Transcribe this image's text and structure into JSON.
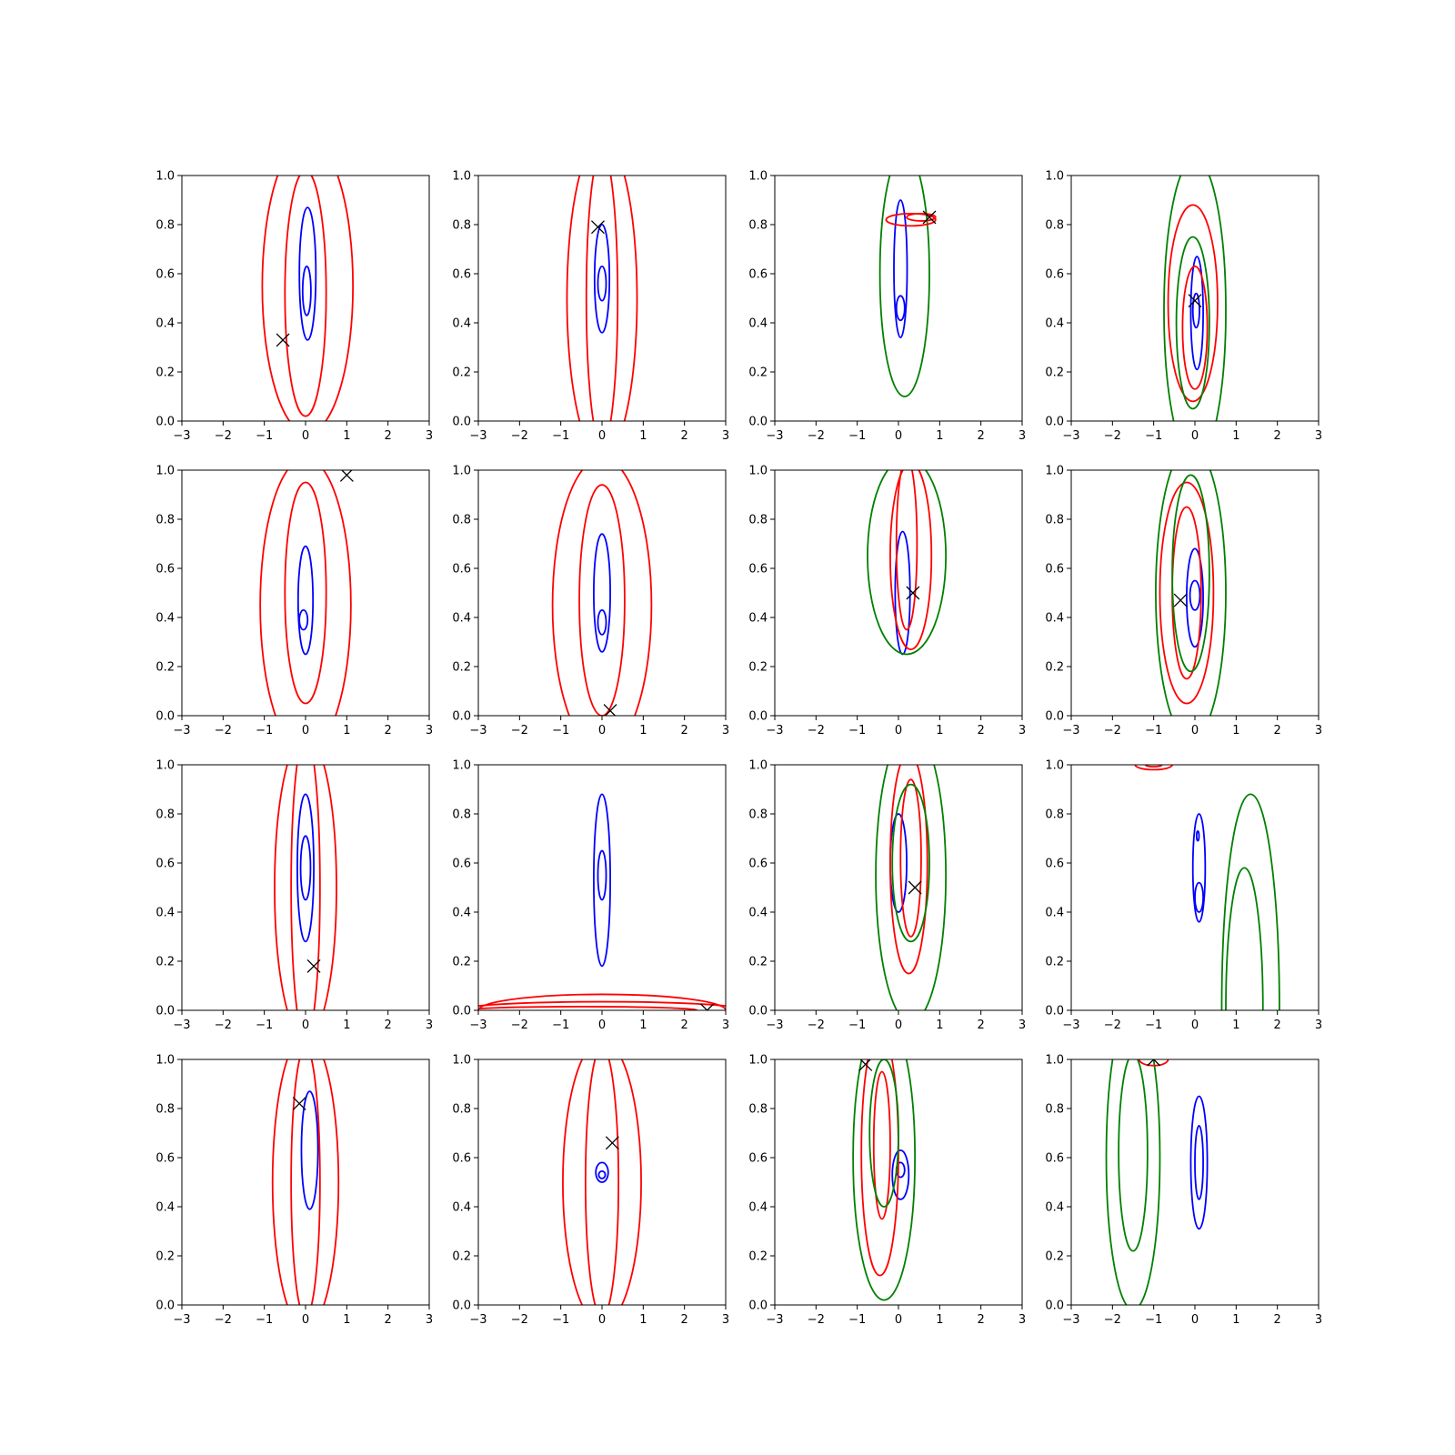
{
  "chart_data": {
    "type": "contour",
    "layout": {
      "rows": 4,
      "cols": 4
    },
    "colors": {
      "blue": "#0000ff",
      "red": "#ff0000",
      "green": "#008000",
      "marker": "#000000",
      "axes": "#000000"
    },
    "xlim": [
      -3,
      3
    ],
    "ylim": [
      0,
      1
    ],
    "xticks": [
      -3,
      -2,
      -1,
      0,
      1,
      2,
      3
    ],
    "yticks": [
      0.0,
      0.2,
      0.4,
      0.6,
      0.8,
      1.0
    ],
    "xtick_labels": [
      "−3",
      "−2",
      "−1",
      "0",
      "1",
      "2",
      "3"
    ],
    "ytick_labels": [
      "0.0",
      "0.2",
      "0.4",
      "0.6",
      "0.8",
      "1.0"
    ],
    "marker_symbol": "x",
    "panels": [
      {
        "marker": [
          -0.55,
          0.33
        ],
        "contours": [
          {
            "color": "blue",
            "cx": 0.05,
            "cy": 0.6,
            "rx": 0.2,
            "ry": 0.27
          },
          {
            "color": "blue",
            "cx": 0.03,
            "cy": 0.53,
            "rx": 0.1,
            "ry": 0.1
          },
          {
            "color": "red",
            "cx": 0.05,
            "cy": 0.55,
            "rx": 1.1,
            "ry": 0.6
          },
          {
            "color": "red",
            "cx": 0.0,
            "cy": 0.52,
            "rx": 0.5,
            "ry": 0.5
          }
        ]
      },
      {
        "marker": [
          -0.1,
          0.79
        ],
        "contours": [
          {
            "color": "blue",
            "cx": 0.0,
            "cy": 0.58,
            "rx": 0.18,
            "ry": 0.22
          },
          {
            "color": "blue",
            "cx": 0.0,
            "cy": 0.56,
            "rx": 0.1,
            "ry": 0.07
          },
          {
            "color": "red",
            "cx": 0.0,
            "cy": 0.5,
            "rx": 0.85,
            "ry": 0.65
          },
          {
            "color": "red",
            "cx": 0.0,
            "cy": 0.5,
            "rx": 0.38,
            "ry": 0.6
          }
        ]
      },
      {
        "marker": [
          0.75,
          0.83
        ],
        "contours": [
          {
            "color": "blue",
            "cx": 0.05,
            "cy": 0.62,
            "rx": 0.16,
            "ry": 0.28
          },
          {
            "color": "blue",
            "cx": 0.05,
            "cy": 0.46,
            "rx": 0.1,
            "ry": 0.05
          },
          {
            "color": "green",
            "cx": 0.15,
            "cy": 0.6,
            "rx": 0.6,
            "ry": 0.5
          },
          {
            "color": "red",
            "cx": 0.3,
            "cy": 0.82,
            "rx": 0.6,
            "ry": 0.025
          },
          {
            "color": "red",
            "cx": 0.55,
            "cy": 0.83,
            "rx": 0.35,
            "ry": 0.015
          }
        ]
      },
      {
        "marker": [
          0.0,
          0.49
        ],
        "contours": [
          {
            "color": "blue",
            "cx": 0.05,
            "cy": 0.44,
            "rx": 0.15,
            "ry": 0.23
          },
          {
            "color": "blue",
            "cx": 0.03,
            "cy": 0.45,
            "rx": 0.08,
            "ry": 0.07
          },
          {
            "color": "red",
            "cx": -0.05,
            "cy": 0.48,
            "rx": 0.6,
            "ry": 0.4
          },
          {
            "color": "red",
            "cx": 0.0,
            "cy": 0.38,
            "rx": 0.3,
            "ry": 0.25
          },
          {
            "color": "green",
            "cx": 0.0,
            "cy": 0.45,
            "rx": 0.75,
            "ry": 0.62
          },
          {
            "color": "green",
            "cx": -0.05,
            "cy": 0.4,
            "rx": 0.4,
            "ry": 0.35
          }
        ]
      },
      {
        "marker": [
          1.0,
          0.98
        ],
        "contours": [
          {
            "color": "blue",
            "cx": 0.0,
            "cy": 0.47,
            "rx": 0.18,
            "ry": 0.22
          },
          {
            "color": "blue",
            "cx": -0.05,
            "cy": 0.39,
            "rx": 0.1,
            "ry": 0.04
          },
          {
            "color": "red",
            "cx": 0.0,
            "cy": 0.45,
            "rx": 1.1,
            "ry": 0.6
          },
          {
            "color": "red",
            "cx": 0.0,
            "cy": 0.5,
            "rx": 0.5,
            "ry": 0.45
          }
        ]
      },
      {
        "marker": [
          0.2,
          0.02
        ],
        "contours": [
          {
            "color": "blue",
            "cx": 0.0,
            "cy": 0.5,
            "rx": 0.2,
            "ry": 0.24
          },
          {
            "color": "blue",
            "cx": 0.0,
            "cy": 0.38,
            "rx": 0.1,
            "ry": 0.05
          },
          {
            "color": "red",
            "cx": 0.0,
            "cy": 0.45,
            "rx": 1.2,
            "ry": 0.6
          },
          {
            "color": "red",
            "cx": 0.0,
            "cy": 0.47,
            "rx": 0.55,
            "ry": 0.47
          }
        ]
      },
      {
        "marker": [
          0.35,
          0.5
        ],
        "contours": [
          {
            "color": "blue",
            "cx": 0.1,
            "cy": 0.5,
            "rx": 0.18,
            "ry": 0.25
          },
          {
            "color": "red",
            "cx": 0.3,
            "cy": 0.65,
            "rx": 0.5,
            "ry": 0.38
          },
          {
            "color": "red",
            "cx": 0.2,
            "cy": 0.7,
            "rx": 0.25,
            "ry": 0.35
          },
          {
            "color": "green",
            "cx": 0.2,
            "cy": 0.65,
            "rx": 0.95,
            "ry": 0.4
          }
        ]
      },
      {
        "marker": [
          -0.35,
          0.47
        ],
        "contours": [
          {
            "color": "blue",
            "cx": 0.0,
            "cy": 0.48,
            "rx": 0.2,
            "ry": 0.2
          },
          {
            "color": "blue",
            "cx": 0.0,
            "cy": 0.49,
            "rx": 0.12,
            "ry": 0.06
          },
          {
            "color": "red",
            "cx": -0.2,
            "cy": 0.5,
            "rx": 0.65,
            "ry": 0.45
          },
          {
            "color": "red",
            "cx": -0.2,
            "cy": 0.5,
            "rx": 0.35,
            "ry": 0.35
          },
          {
            "color": "green",
            "cx": -0.1,
            "cy": 0.5,
            "rx": 0.85,
            "ry": 0.6
          },
          {
            "color": "green",
            "cx": -0.1,
            "cy": 0.58,
            "rx": 0.45,
            "ry": 0.4
          }
        ]
      },
      {
        "marker": [
          0.2,
          0.18
        ],
        "contours": [
          {
            "color": "blue",
            "cx": 0.0,
            "cy": 0.58,
            "rx": 0.2,
            "ry": 0.3
          },
          {
            "color": "blue",
            "cx": 0.0,
            "cy": 0.58,
            "rx": 0.12,
            "ry": 0.13
          },
          {
            "color": "red",
            "cx": 0.0,
            "cy": 0.5,
            "rx": 0.75,
            "ry": 0.62
          },
          {
            "color": "red",
            "cx": 0.0,
            "cy": 0.5,
            "rx": 0.35,
            "ry": 0.62
          }
        ]
      },
      {
        "marker": [
          2.55,
          0.0
        ],
        "contours": [
          {
            "color": "blue",
            "cx": 0.0,
            "cy": 0.53,
            "rx": 0.2,
            "ry": 0.35
          },
          {
            "color": "blue",
            "cx": 0.0,
            "cy": 0.55,
            "rx": 0.1,
            "ry": 0.1
          },
          {
            "color": "red",
            "cx": 0.0,
            "cy": 0.0,
            "rx": 3.5,
            "ry": 0.035
          },
          {
            "color": "red",
            "cx": 0.0,
            "cy": 0.0,
            "rx": 3.0,
            "ry": 0.065
          },
          {
            "color": "red",
            "cx": -0.5,
            "cy": 0.0,
            "rx": 2.8,
            "ry": 0.015
          }
        ]
      },
      {
        "marker": [
          0.4,
          0.5
        ],
        "contours": [
          {
            "color": "blue",
            "cx": 0.0,
            "cy": 0.6,
            "rx": 0.2,
            "ry": 0.2
          },
          {
            "color": "red",
            "cx": 0.25,
            "cy": 0.6,
            "rx": 0.45,
            "ry": 0.45
          },
          {
            "color": "red",
            "cx": 0.3,
            "cy": 0.62,
            "rx": 0.25,
            "ry": 0.32
          },
          {
            "color": "green",
            "cx": 0.3,
            "cy": 0.55,
            "rx": 0.85,
            "ry": 0.6
          },
          {
            "color": "green",
            "cx": 0.3,
            "cy": 0.6,
            "rx": 0.45,
            "ry": 0.32
          }
        ]
      },
      {
        "marker": null,
        "contours": [
          {
            "color": "blue",
            "cx": 0.1,
            "cy": 0.58,
            "rx": 0.15,
            "ry": 0.22
          },
          {
            "color": "blue",
            "cx": 0.1,
            "cy": 0.46,
            "rx": 0.1,
            "ry": 0.06
          },
          {
            "color": "blue",
            "cx": 0.07,
            "cy": 0.71,
            "rx": 0.03,
            "ry": 0.02
          },
          {
            "color": "green",
            "cx": 1.35,
            "cy": 0.0,
            "rx": 0.7,
            "ry": 0.88
          },
          {
            "color": "green",
            "cx": 1.2,
            "cy": 0.0,
            "rx": 0.45,
            "ry": 0.58
          },
          {
            "color": "red",
            "cx": -1.0,
            "cy": 1.0,
            "rx": 0.45,
            "ry": 0.02
          },
          {
            "color": "red",
            "cx": -1.0,
            "cy": 1.0,
            "rx": 0.2,
            "ry": 0.008
          }
        ]
      },
      {
        "marker": [
          -0.15,
          0.82
        ],
        "contours": [
          {
            "color": "blue",
            "cx": 0.1,
            "cy": 0.63,
            "rx": 0.2,
            "ry": 0.24
          },
          {
            "color": "red",
            "cx": 0.0,
            "cy": 0.5,
            "rx": 0.8,
            "ry": 0.6
          },
          {
            "color": "red",
            "cx": 0.0,
            "cy": 0.5,
            "rx": 0.35,
            "ry": 0.55
          }
        ]
      },
      {
        "marker": [
          0.25,
          0.66
        ],
        "contours": [
          {
            "color": "blue",
            "cx": 0.0,
            "cy": 0.54,
            "rx": 0.15,
            "ry": 0.04
          },
          {
            "color": "blue",
            "cx": 0.0,
            "cy": 0.53,
            "rx": 0.08,
            "ry": 0.015
          },
          {
            "color": "red",
            "cx": 0.0,
            "cy": 0.5,
            "rx": 0.95,
            "ry": 0.58
          },
          {
            "color": "red",
            "cx": 0.0,
            "cy": 0.5,
            "rx": 0.4,
            "ry": 0.55
          }
        ]
      },
      {
        "marker": [
          -0.8,
          0.98
        ],
        "contours": [
          {
            "color": "blue",
            "cx": 0.05,
            "cy": 0.53,
            "rx": 0.2,
            "ry": 0.1
          },
          {
            "color": "blue",
            "cx": 0.05,
            "cy": 0.55,
            "rx": 0.1,
            "ry": 0.03
          },
          {
            "color": "red",
            "cx": -0.45,
            "cy": 0.62,
            "rx": 0.45,
            "ry": 0.5
          },
          {
            "color": "red",
            "cx": -0.4,
            "cy": 0.65,
            "rx": 0.2,
            "ry": 0.3
          },
          {
            "color": "green",
            "cx": -0.35,
            "cy": 0.6,
            "rx": 0.75,
            "ry": 0.58
          },
          {
            "color": "green",
            "cx": -0.35,
            "cy": 0.7,
            "rx": 0.35,
            "ry": 0.3
          }
        ]
      },
      {
        "marker": [
          -1.0,
          1.0
        ],
        "contours": [
          {
            "color": "blue",
            "cx": 0.1,
            "cy": 0.58,
            "rx": 0.2,
            "ry": 0.27
          },
          {
            "color": "blue",
            "cx": 0.1,
            "cy": 0.58,
            "rx": 0.1,
            "ry": 0.15
          },
          {
            "color": "green",
            "cx": -1.5,
            "cy": 0.6,
            "rx": 0.65,
            "ry": 0.62
          },
          {
            "color": "green",
            "cx": -1.5,
            "cy": 0.62,
            "rx": 0.35,
            "ry": 0.4
          },
          {
            "color": "red",
            "cx": -1.0,
            "cy": 1.0,
            "rx": 0.35,
            "ry": 0.025
          }
        ]
      }
    ]
  }
}
